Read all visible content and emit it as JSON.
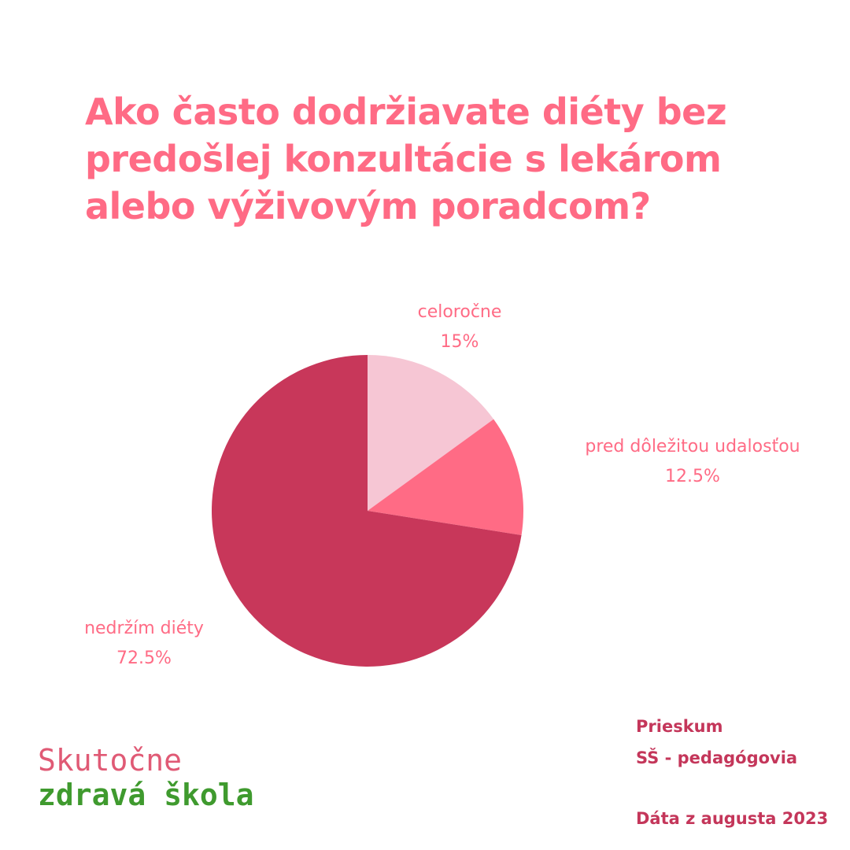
{
  "chart_data": {
    "type": "pie",
    "title_lines": [
      "Ako často dodržiavate diéty bez",
      "predošlej konzultácie s lekárom",
      "alebo výživovým poradcom?"
    ],
    "slices": [
      {
        "label": "celoročne",
        "value": 15,
        "value_label": "15%",
        "color": "#f6c6d4"
      },
      {
        "label": "pred dôležitou udalosťou",
        "value": 12.5,
        "value_label": "12.5%",
        "color": "#ff6b85"
      },
      {
        "label": "nedržím diéty",
        "value": 72.5,
        "value_label": "72.5%",
        "color": "#c8375a"
      }
    ],
    "start_angle": "12 o'clock",
    "direction": "clockwise",
    "label_color": "#ff6b85"
  },
  "brand": {
    "line1": "Skutočne",
    "line2": "zdravá škola",
    "color1": "#e05a75",
    "color2": "#3f9a2e"
  },
  "survey": {
    "line1": "Prieskum",
    "line2": "SŠ - pedagógovia",
    "date": "Dáta z augusta 2023",
    "color": "#c4365a"
  },
  "title_color": "#ff6b85"
}
